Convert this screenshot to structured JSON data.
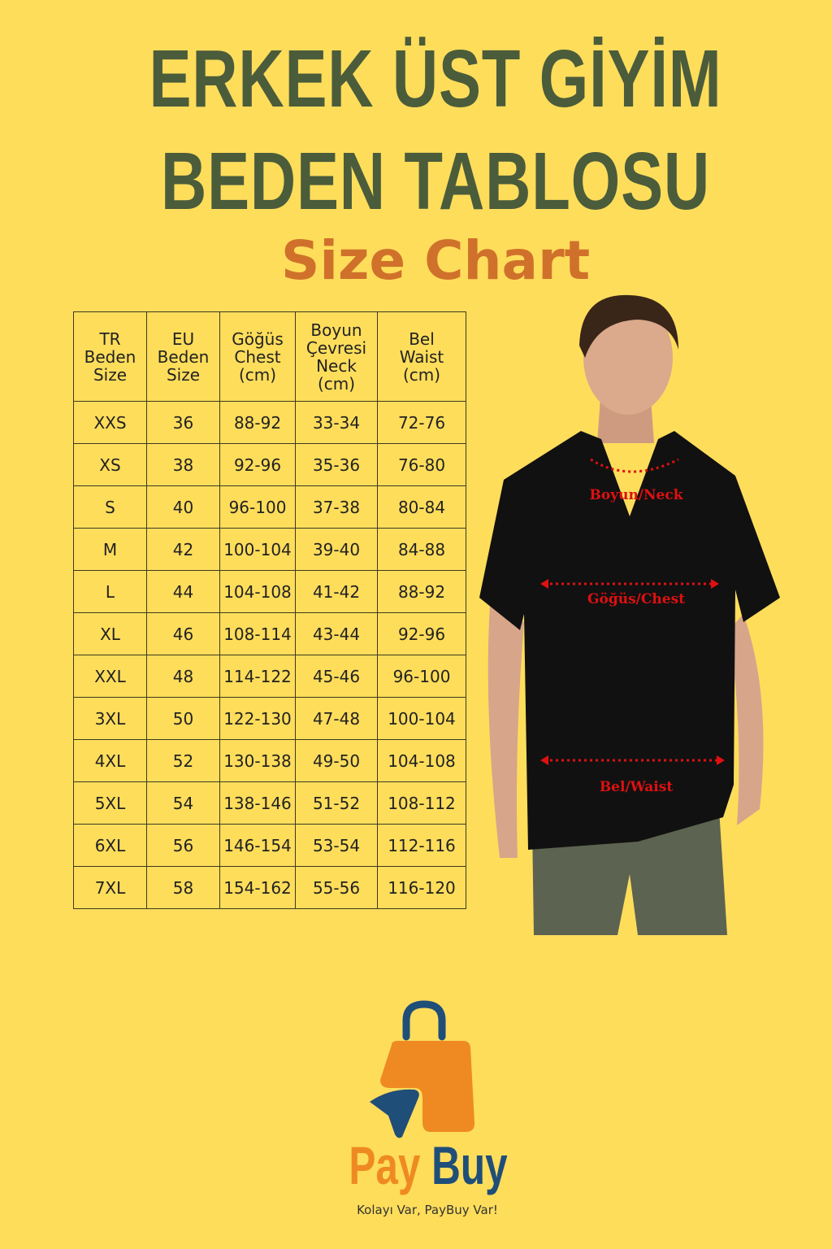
{
  "title": {
    "line1": "ERKEK ÜST GİYİM",
    "line2": "BEDEN TABLOSU",
    "subtitle": "Size Chart"
  },
  "table": {
    "headers": [
      [
        "TR",
        "Beden",
        "Size"
      ],
      [
        "EU",
        "Beden",
        "Size"
      ],
      [
        "Göğüs",
        "Chest",
        "(cm)"
      ],
      [
        "Boyun",
        "Çevresi",
        "Neck",
        "(cm)"
      ],
      [
        "Bel",
        "Waist",
        "(cm)"
      ]
    ],
    "rows": [
      [
        "XXS",
        "36",
        "88-92",
        "33-34",
        "72-76"
      ],
      [
        "XS",
        "38",
        "92-96",
        "35-36",
        "76-80"
      ],
      [
        "S",
        "40",
        "96-100",
        "37-38",
        "80-84"
      ],
      [
        "M",
        "42",
        "100-104",
        "39-40",
        "84-88"
      ],
      [
        "L",
        "44",
        "104-108",
        "41-42",
        "88-92"
      ],
      [
        "XL",
        "46",
        "108-114",
        "43-44",
        "92-96"
      ],
      [
        "XXL",
        "48",
        "114-122",
        "45-46",
        "96-100"
      ],
      [
        "3XL",
        "50",
        "122-130",
        "47-48",
        "100-104"
      ],
      [
        "4XL",
        "52",
        "130-138",
        "49-50",
        "104-108"
      ],
      [
        "5XL",
        "54",
        "138-146",
        "51-52",
        "108-112"
      ],
      [
        "6XL",
        "56",
        "146-154",
        "53-54",
        "112-116"
      ],
      [
        "7XL",
        "58",
        "154-162",
        "55-56",
        "116-120"
      ]
    ]
  },
  "model": {
    "neck_label": "Boyun/Neck",
    "chest_label": "Göğüs/Chest",
    "waist_label": "Bel/Waist",
    "marker_color": "#e01010"
  },
  "logo": {
    "brand_pay": "Pay",
    "brand_buy": "Buy",
    "tagline": "Kolayı Var, PayBuy Var!",
    "orange": "#ef8a23",
    "blue": "#1f4e79"
  }
}
